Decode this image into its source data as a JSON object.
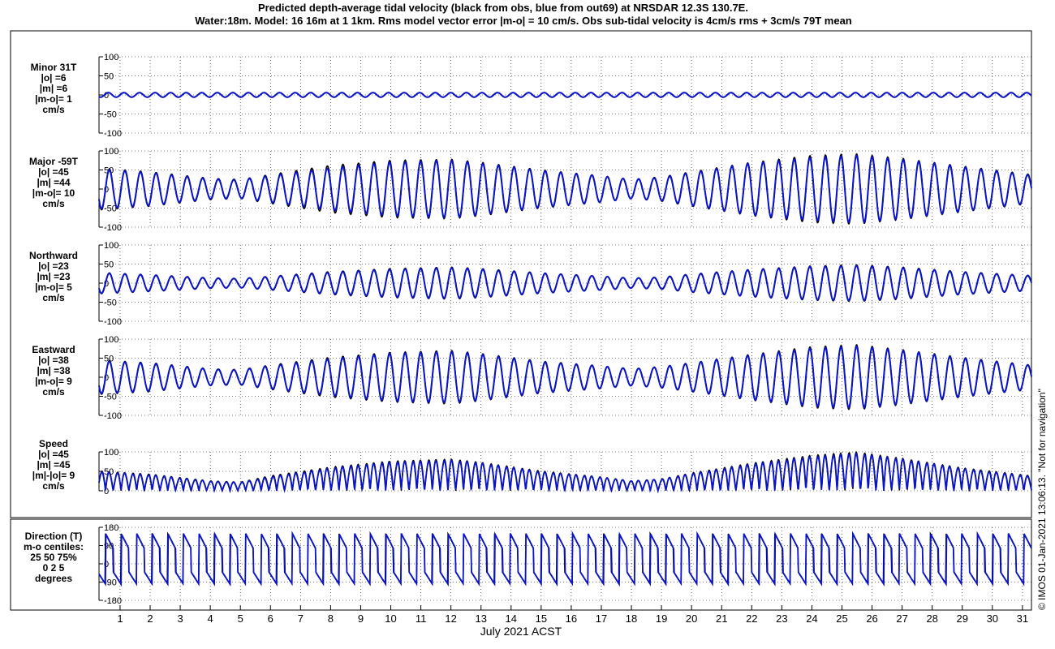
{
  "title": {
    "line1": "Predicted depth-average tidal velocity (black from obs, blue from out69) at NRSDAR 12.3S 130.7E.",
    "line2": "Water:18m. Model: 16 16m at 1 1km. Rms model vector error |m-o| = 10 cm/s. Obs sub-tidal velocity is 4cm/s rms + 3cm/s 79T mean"
  },
  "x_axis": {
    "label": "July 2021 ACST",
    "day_ticks": [
      "1",
      "2",
      "3",
      "4",
      "5",
      "6",
      "7",
      "8",
      "9",
      "10",
      "11",
      "12",
      "13",
      "14",
      "15",
      "16",
      "17",
      "18",
      "19",
      "20",
      "21",
      "22",
      "23",
      "24",
      "25",
      "26",
      "27",
      "28",
      "29",
      "30",
      "31"
    ]
  },
  "credit": "© IMOS 01-Jan-2021 13:06:13. \"Not for navigation\"",
  "colors": {
    "observed": "#000000",
    "model": "#0a14c8",
    "grid": "#000000"
  },
  "panels": [
    {
      "id": "minor",
      "label": [
        "Minor 31T",
        "|o| =6",
        "|m| =6",
        "|m-o|= 1",
        "cm/s"
      ],
      "yticks": [
        "100",
        "50",
        "0",
        "-50",
        "-100"
      ],
      "ylim": [
        -100,
        100
      ]
    },
    {
      "id": "major",
      "label": [
        "Major -59T",
        "|o| =45",
        "|m| =44",
        "|m-o|= 10",
        "cm/s"
      ],
      "yticks": [
        "100",
        "50",
        "0",
        "-50",
        "-100"
      ],
      "ylim": [
        -100,
        100
      ]
    },
    {
      "id": "northward",
      "label": [
        "Northward",
        "|o| =23",
        "|m| =23",
        "|m-o|= 5",
        "cm/s"
      ],
      "yticks": [
        "100",
        "50",
        "0",
        "-50",
        "-100"
      ],
      "ylim": [
        -100,
        100
      ]
    },
    {
      "id": "eastward",
      "label": [
        "Eastward",
        "|o| =38",
        "|m| =38",
        "|m-o|= 9",
        "cm/s"
      ],
      "yticks": [
        "100",
        "50",
        "0",
        "-50",
        "-100"
      ],
      "ylim": [
        -100,
        100
      ]
    },
    {
      "id": "speed",
      "label": [
        "Speed",
        "|o| =45",
        "|m| =45",
        "|m|-|o|= 9",
        "cm/s"
      ],
      "yticks": [
        "100",
        "50",
        "0"
      ],
      "ylim": [
        0,
        100
      ]
    },
    {
      "id": "direction",
      "label": [
        "Direction (T)",
        "m-o centiles:",
        "25  50  75%",
        "0  2  5",
        "degrees"
      ],
      "yticks": [
        "180",
        "90",
        "0",
        "-90",
        "-180"
      ],
      "ylim": [
        -180,
        180
      ]
    }
  ],
  "chart_data": {
    "type": "line",
    "x_unit": "day of July 2021 (ACST)",
    "xlim": [
      0.3,
      31.3
    ],
    "series": [
      {
        "name": "obs",
        "color": "#000000"
      },
      {
        "name": "out69",
        "color": "#0a14c8"
      }
    ],
    "approximation": "semidiurnal tide, period 0.5175 day; amplitude (cm/s) per panel read at listed days",
    "envelope_days": [
      0.3,
      2,
      4,
      5,
      6,
      8,
      10,
      12,
      13,
      15,
      17,
      18,
      19,
      20,
      22,
      24,
      25.5,
      27,
      29,
      31.3
    ],
    "panels": [
      {
        "id": "minor",
        "obs_amplitude": [
          6,
          6,
          6,
          6,
          6,
          6,
          6,
          6,
          6,
          6,
          6,
          6,
          6,
          6,
          6,
          6,
          6,
          6,
          6,
          6
        ],
        "model_amplitude": [
          6,
          6,
          6,
          6,
          6,
          6,
          6,
          6,
          6,
          6,
          6,
          6,
          6,
          6,
          6,
          6,
          6,
          6,
          6,
          6
        ]
      },
      {
        "id": "major",
        "obs_amplitude": [
          55,
          45,
          28,
          25,
          38,
          62,
          75,
          78,
          70,
          50,
          35,
          25,
          32,
          45,
          70,
          88,
          92,
          80,
          60,
          38
        ],
        "model_amplitude": [
          52,
          43,
          26,
          24,
          35,
          55,
          70,
          75,
          67,
          48,
          34,
          25,
          30,
          43,
          68,
          82,
          88,
          77,
          58,
          36
        ]
      },
      {
        "id": "northward",
        "obs_amplitude": [
          28,
          22,
          14,
          12,
          18,
          30,
          38,
          42,
          38,
          27,
          18,
          13,
          16,
          24,
          36,
          45,
          48,
          42,
          30,
          20
        ],
        "model_amplitude": [
          27,
          21,
          13,
          12,
          17,
          28,
          36,
          40,
          36,
          26,
          18,
          13,
          15,
          23,
          35,
          43,
          46,
          40,
          29,
          19
        ]
      },
      {
        "id": "eastward",
        "obs_amplitude": [
          45,
          38,
          22,
          20,
          32,
          52,
          65,
          70,
          62,
          42,
          30,
          22,
          28,
          38,
          60,
          80,
          85,
          72,
          52,
          32
        ],
        "model_amplitude": [
          43,
          36,
          21,
          19,
          30,
          48,
          62,
          67,
          60,
          40,
          29,
          22,
          27,
          37,
          58,
          76,
          81,
          70,
          50,
          31
        ]
      },
      {
        "id": "speed",
        "obs_peak": [
          50,
          42,
          25,
          22,
          38,
          60,
          75,
          80,
          72,
          50,
          35,
          25,
          30,
          45,
          70,
          90,
          98,
          82,
          58,
          38
        ],
        "model_peak": [
          48,
          40,
          24,
          21,
          35,
          57,
          72,
          77,
          70,
          48,
          34,
          25,
          29,
          43,
          67,
          86,
          94,
          80,
          56,
          36
        ]
      },
      {
        "id": "direction",
        "pattern": "alternating ebb/flood direction near -59T / 121T"
      }
    ]
  }
}
